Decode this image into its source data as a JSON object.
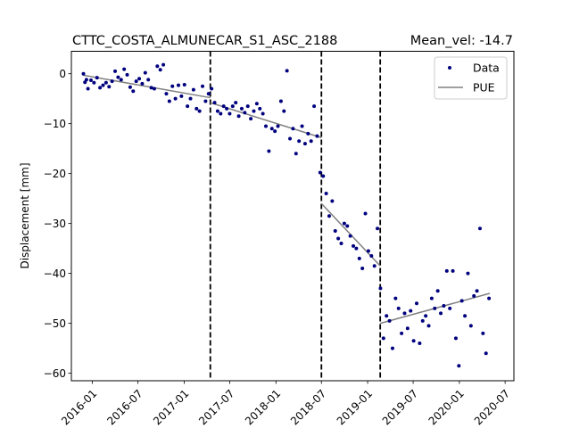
{
  "chart_data": {
    "type": "scatter",
    "title": "CTTC_COSTA_ALMUNECAR_S1_ASC_2188",
    "title_right": "Mean_vel: -14.7",
    "xlabel": "",
    "ylabel": "Displacement [mm]",
    "xlim": [
      "2015-10-10",
      "2020-08-05"
    ],
    "ylim": [
      -61.5,
      4.5
    ],
    "grid": false,
    "legend_position": "top-right",
    "x_ticks": [
      {
        "date": "2016-01-01",
        "label": "2016-01"
      },
      {
        "date": "2016-07-01",
        "label": "2016-07"
      },
      {
        "date": "2017-01-01",
        "label": "2017-01"
      },
      {
        "date": "2017-07-01",
        "label": "2017-07"
      },
      {
        "date": "2018-01-01",
        "label": "2018-01"
      },
      {
        "date": "2018-07-01",
        "label": "2018-07"
      },
      {
        "date": "2019-01-01",
        "label": "2019-01"
      },
      {
        "date": "2019-07-01",
        "label": "2019-07"
      },
      {
        "date": "2020-01-01",
        "label": "2020-01"
      },
      {
        "date": "2020-07-01",
        "label": "2020-07"
      }
    ],
    "y_ticks": [
      0,
      -10,
      -20,
      -30,
      -40,
      -50,
      -60
    ],
    "breakpoints": [
      "2017-04-15",
      "2018-07-01",
      "2019-02-20"
    ],
    "series": [
      {
        "name": "Data",
        "kind": "scatter",
        "color": "#00007f",
        "points": [
          [
            "2015-11-27",
            0.0
          ],
          [
            "2015-12-03",
            -1.7
          ],
          [
            "2015-12-09",
            -1.2
          ],
          [
            "2015-12-15",
            -3.0
          ],
          [
            "2015-12-27",
            -1.3
          ],
          [
            "2016-01-08",
            -1.8
          ],
          [
            "2016-01-20",
            -0.8
          ],
          [
            "2016-02-01",
            -2.8
          ],
          [
            "2016-02-13",
            -2.3
          ],
          [
            "2016-02-25",
            -1.8
          ],
          [
            "2016-03-08",
            -2.6
          ],
          [
            "2016-03-20",
            -1.5
          ],
          [
            "2016-04-01",
            0.5
          ],
          [
            "2016-04-13",
            -0.7
          ],
          [
            "2016-04-25",
            -1.2
          ],
          [
            "2016-05-07",
            0.9
          ],
          [
            "2016-05-19",
            -0.2
          ],
          [
            "2016-05-31",
            -2.7
          ],
          [
            "2016-06-12",
            -3.5
          ],
          [
            "2016-06-24",
            -1.5
          ],
          [
            "2016-07-06",
            -1.0
          ],
          [
            "2016-07-18",
            -2.0
          ],
          [
            "2016-07-30",
            0.2
          ],
          [
            "2016-08-11",
            -1.2
          ],
          [
            "2016-08-23",
            -2.8
          ],
          [
            "2016-09-04",
            -3.0
          ],
          [
            "2016-09-16",
            1.5
          ],
          [
            "2016-09-28",
            0.8
          ],
          [
            "2016-10-10",
            1.8
          ],
          [
            "2016-10-22",
            -4.0
          ],
          [
            "2016-11-03",
            -5.5
          ],
          [
            "2016-11-15",
            -2.5
          ],
          [
            "2016-11-27",
            -5.0
          ],
          [
            "2016-12-09",
            -2.3
          ],
          [
            "2016-12-21",
            -4.5
          ],
          [
            "2017-01-02",
            -2.2
          ],
          [
            "2017-01-14",
            -6.5
          ],
          [
            "2017-01-26",
            -5.0
          ],
          [
            "2017-02-07",
            -3.2
          ],
          [
            "2017-02-19",
            -7.0
          ],
          [
            "2017-03-03",
            -7.5
          ],
          [
            "2017-03-15",
            -2.5
          ],
          [
            "2017-03-27",
            -5.5
          ],
          [
            "2017-04-08",
            -4.0
          ],
          [
            "2017-04-20",
            -3.0
          ],
          [
            "2017-05-02",
            -5.8
          ],
          [
            "2017-05-14",
            -7.5
          ],
          [
            "2017-05-26",
            -8.0
          ],
          [
            "2017-06-07",
            -6.5
          ],
          [
            "2017-06-19",
            -7.0
          ],
          [
            "2017-07-01",
            -8.0
          ],
          [
            "2017-07-13",
            -6.5
          ],
          [
            "2017-07-25",
            -5.8
          ],
          [
            "2017-08-06",
            -8.5
          ],
          [
            "2017-08-18",
            -7.0
          ],
          [
            "2017-08-30",
            -7.8
          ],
          [
            "2017-09-11",
            -6.5
          ],
          [
            "2017-09-23",
            -9.0
          ],
          [
            "2017-10-05",
            -7.5
          ],
          [
            "2017-10-17",
            -6.0
          ],
          [
            "2017-10-29",
            -7.0
          ],
          [
            "2017-11-10",
            -8.0
          ],
          [
            "2017-11-22",
            -10.5
          ],
          [
            "2017-12-04",
            -15.5
          ],
          [
            "2017-12-16",
            -11.0
          ],
          [
            "2017-12-28",
            -11.5
          ],
          [
            "2018-01-09",
            -10.5
          ],
          [
            "2018-01-21",
            -5.5
          ],
          [
            "2018-02-02",
            -7.5
          ],
          [
            "2018-02-14",
            0.6
          ],
          [
            "2018-02-26",
            -13.0
          ],
          [
            "2018-03-10",
            -11.0
          ],
          [
            "2018-03-22",
            -16.0
          ],
          [
            "2018-04-03",
            -13.5
          ],
          [
            "2018-04-15",
            -10.5
          ],
          [
            "2018-04-27",
            -14.0
          ],
          [
            "2018-05-09",
            -12.0
          ],
          [
            "2018-05-21",
            -13.5
          ],
          [
            "2018-06-02",
            -6.5
          ],
          [
            "2018-06-14",
            -12.5
          ],
          [
            "2018-06-26",
            -19.8
          ],
          [
            "2018-07-08",
            -20.5
          ],
          [
            "2018-07-20",
            -24.0
          ],
          [
            "2018-08-01",
            -28.5
          ],
          [
            "2018-08-13",
            -25.5
          ],
          [
            "2018-08-25",
            -31.5
          ],
          [
            "2018-09-06",
            -33.0
          ],
          [
            "2018-09-18",
            -34.0
          ],
          [
            "2018-09-30",
            -30.0
          ],
          [
            "2018-10-12",
            -30.5
          ],
          [
            "2018-10-24",
            -32.5
          ],
          [
            "2018-11-05",
            -34.5
          ],
          [
            "2018-11-17",
            -35.0
          ],
          [
            "2018-11-29",
            -37.0
          ],
          [
            "2018-12-11",
            -39.0
          ],
          [
            "2018-12-23",
            -28.0
          ],
          [
            "2019-01-04",
            -35.5
          ],
          [
            "2019-01-16",
            -36.5
          ],
          [
            "2019-01-28",
            -38.5
          ],
          [
            "2019-02-09",
            -31.0
          ],
          [
            "2019-02-21",
            -43.0
          ],
          [
            "2019-03-05",
            -53.0
          ],
          [
            "2019-03-17",
            -48.5
          ],
          [
            "2019-03-29",
            -49.5
          ],
          [
            "2019-04-10",
            -55.0
          ],
          [
            "2019-04-22",
            -45.0
          ],
          [
            "2019-05-04",
            -47.0
          ],
          [
            "2019-05-16",
            -52.0
          ],
          [
            "2019-05-28",
            -48.0
          ],
          [
            "2019-06-09",
            -51.0
          ],
          [
            "2019-06-21",
            -47.5
          ],
          [
            "2019-07-03",
            -53.5
          ],
          [
            "2019-07-15",
            -46.0
          ],
          [
            "2019-07-27",
            -54.0
          ],
          [
            "2019-08-08",
            -49.5
          ],
          [
            "2019-08-20",
            -48.5
          ],
          [
            "2019-09-01",
            -50.5
          ],
          [
            "2019-09-13",
            -45.0
          ],
          [
            "2019-09-25",
            -47.0
          ],
          [
            "2019-10-07",
            -43.5
          ],
          [
            "2019-10-19",
            -48.0
          ],
          [
            "2019-10-31",
            -46.5
          ],
          [
            "2019-11-12",
            -39.5
          ],
          [
            "2019-11-24",
            -47.0
          ],
          [
            "2019-12-06",
            -39.5
          ],
          [
            "2019-12-18",
            -53.0
          ],
          [
            "2019-12-30",
            -58.5
          ],
          [
            "2020-01-11",
            -45.5
          ],
          [
            "2020-01-23",
            -48.5
          ],
          [
            "2020-02-04",
            -40.0
          ],
          [
            "2020-02-16",
            -50.5
          ],
          [
            "2020-02-28",
            -44.5
          ],
          [
            "2020-03-11",
            -43.5
          ],
          [
            "2020-03-23",
            -31.0
          ],
          [
            "2020-04-04",
            -52.0
          ],
          [
            "2020-04-16",
            -56.0
          ],
          [
            "2020-04-28",
            -45.0
          ]
        ]
      },
      {
        "name": "PUE",
        "kind": "line",
        "color": "#808080",
        "segments": [
          [
            [
              "2015-11-27",
              -0.3
            ],
            [
              "2017-04-15",
              -4.8
            ]
          ],
          [
            [
              "2017-04-15",
              -5.8
            ],
            [
              "2018-07-01",
              -12.8
            ]
          ],
          [
            [
              "2018-07-01",
              -26.0
            ],
            [
              "2019-02-20",
              -38.5
            ]
          ],
          [
            [
              "2019-02-20",
              -50.0
            ],
            [
              "2020-05-01",
              -44.0
            ]
          ]
        ]
      }
    ]
  }
}
